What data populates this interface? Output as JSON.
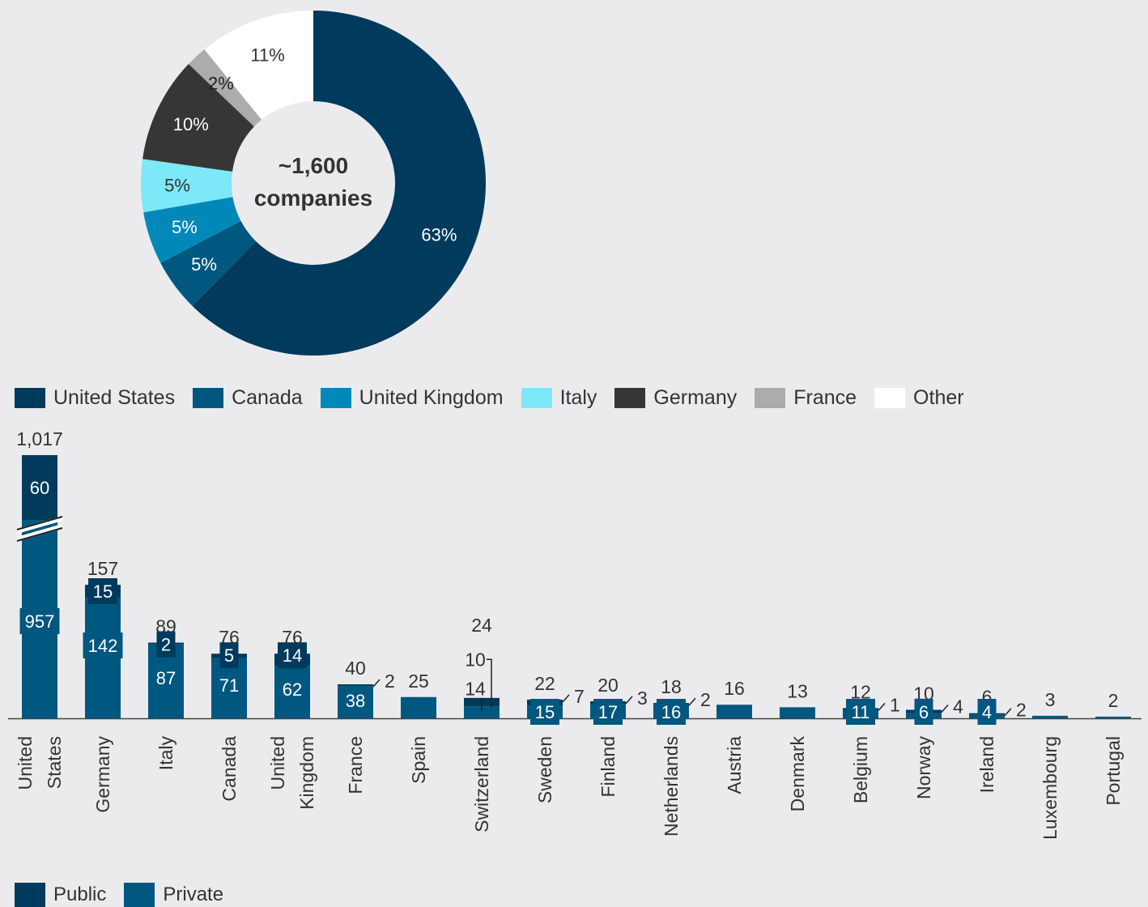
{
  "colors": {
    "background": "#ebebee",
    "united_states": "#003a5c",
    "canada": "#005780",
    "united_kingdom": "#0089b8",
    "italy": "#7de8f8",
    "germany": "#363636",
    "france": "#abacae",
    "other": "#ffffff",
    "public": "#003a5c",
    "private": "#005780",
    "text": "#333333"
  },
  "chart_data": [
    {
      "type": "pie",
      "center_label": [
        "~1,600",
        "companies"
      ],
      "slices": [
        {
          "name": "United States",
          "value": 63,
          "label": "63%",
          "color_key": "united_states"
        },
        {
          "name": "Canada",
          "value": 5,
          "label": "5%",
          "color_key": "canada"
        },
        {
          "name": "United Kingdom",
          "value": 5,
          "label": "5%",
          "color_key": "united_kingdom"
        },
        {
          "name": "Italy",
          "value": 5,
          "label": "5%",
          "color_key": "italy"
        },
        {
          "name": "Germany",
          "value": 10,
          "label": "10%",
          "color_key": "germany"
        },
        {
          "name": "France",
          "value": 2,
          "label": "2%",
          "color_key": "france"
        },
        {
          "name": "Other",
          "value": 11,
          "label": "11%",
          "color_key": "other"
        }
      ],
      "legend": [
        "United States",
        "Canada",
        "United Kingdom",
        "Italy",
        "Germany",
        "France",
        "Other"
      ],
      "legend_position": "bottom"
    },
    {
      "type": "bar",
      "stacked": true,
      "axis_break": "United States",
      "categories": [
        [
          "United",
          "States"
        ],
        [
          "Germany"
        ],
        [
          "Italy"
        ],
        [
          "Canada"
        ],
        [
          "United",
          "Kingdom"
        ],
        [
          "France"
        ],
        [
          "Spain"
        ],
        [
          "Switzerland"
        ],
        [
          "Sweden"
        ],
        [
          "Finland"
        ],
        [
          "Netherlands"
        ],
        [
          "Austria"
        ],
        [
          "Denmark"
        ],
        [
          "Belgium"
        ],
        [
          "Norway"
        ],
        [
          "Ireland"
        ],
        [
          "Luxembourg"
        ],
        [
          "Portugal"
        ]
      ],
      "totals": [
        "1,017",
        "157",
        "89",
        "76",
        "76",
        "40",
        "25",
        "24",
        "22",
        "20",
        "18",
        "16",
        "13",
        "12",
        "10",
        "6",
        "3",
        "2"
      ],
      "series": [
        {
          "name": "Public",
          "color_key": "public",
          "values": [
            60,
            15,
            2,
            5,
            14,
            2,
            0,
            10,
            7,
            3,
            2,
            0,
            0,
            1,
            4,
            2,
            0,
            0
          ],
          "labels": [
            "60",
            "15",
            "2",
            "5",
            "14",
            "2",
            null,
            "10",
            "7",
            "3",
            "2",
            null,
            null,
            "1",
            "4",
            "2",
            null,
            null
          ]
        },
        {
          "name": "Private",
          "color_key": "private",
          "values": [
            957,
            142,
            87,
            71,
            62,
            38,
            25,
            14,
            15,
            17,
            16,
            16,
            13,
            11,
            6,
            4,
            3,
            2
          ],
          "labels": [
            "957",
            "142",
            "87",
            "71",
            "62",
            "38",
            null,
            "14",
            "15",
            "17",
            "16",
            null,
            null,
            "11",
            "6",
            "4",
            null,
            null
          ]
        }
      ],
      "legend": [
        "Public",
        "Private"
      ],
      "legend_position": "bottom-left",
      "grid": false
    }
  ]
}
